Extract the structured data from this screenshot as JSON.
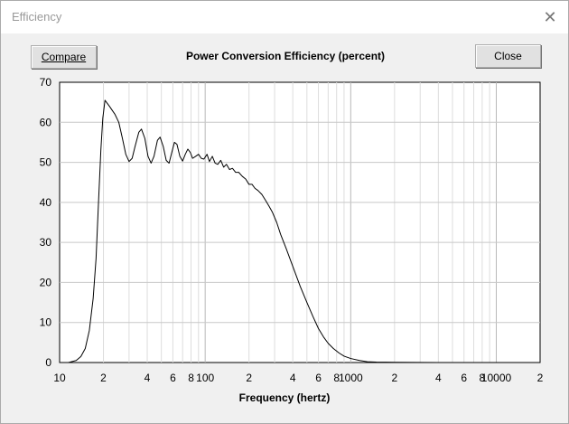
{
  "window": {
    "title": "Efficiency",
    "close_glyph": "✕"
  },
  "toolbar": {
    "compare_label": "Compare",
    "close_label": "Close"
  },
  "chart_data": {
    "type": "line",
    "title": "Power Conversion Efficiency (percent)",
    "xlabel": "Frequency (hertz)",
    "ylabel": "",
    "x_scale": "log",
    "xlim": [
      10,
      20000
    ],
    "ylim": [
      0,
      70
    ],
    "grid": true,
    "y_ticks": [
      0,
      10,
      20,
      30,
      40,
      50,
      60,
      70
    ],
    "x_ticks": [
      {
        "value": 10,
        "label": "10"
      },
      {
        "value": 20,
        "label": "2"
      },
      {
        "value": 40,
        "label": "4"
      },
      {
        "value": 60,
        "label": "6"
      },
      {
        "value": 80,
        "label": "8"
      },
      {
        "value": 100,
        "label": "100"
      },
      {
        "value": 200,
        "label": "2"
      },
      {
        "value": 400,
        "label": "4"
      },
      {
        "value": 600,
        "label": "6"
      },
      {
        "value": 800,
        "label": "8"
      },
      {
        "value": 1000,
        "label": "1000"
      },
      {
        "value": 2000,
        "label": "2"
      },
      {
        "value": 4000,
        "label": "4"
      },
      {
        "value": 6000,
        "label": "6"
      },
      {
        "value": 8000,
        "label": "8"
      },
      {
        "value": 10000,
        "label": "10000"
      },
      {
        "value": 20000,
        "label": "2"
      }
    ],
    "series": [
      {
        "color": "#000000",
        "points": [
          [
            11.5,
            0
          ],
          [
            13,
            0.5
          ],
          [
            14,
            1.5
          ],
          [
            15,
            3.5
          ],
          [
            16,
            8
          ],
          [
            17,
            16
          ],
          [
            17.8,
            26
          ],
          [
            18.5,
            40
          ],
          [
            19.2,
            53
          ],
          [
            19.8,
            61
          ],
          [
            20.5,
            65.5
          ],
          [
            22,
            64
          ],
          [
            24,
            62
          ],
          [
            25.5,
            60
          ],
          [
            27,
            56
          ],
          [
            28.5,
            52
          ],
          [
            30,
            50.2
          ],
          [
            31.5,
            51
          ],
          [
            33,
            54
          ],
          [
            35,
            57.5
          ],
          [
            36.5,
            58.3
          ],
          [
            38.5,
            56
          ],
          [
            40.5,
            51.5
          ],
          [
            42.5,
            49.8
          ],
          [
            44.5,
            51.5
          ],
          [
            47,
            55.5
          ],
          [
            49,
            56.3
          ],
          [
            51.5,
            54
          ],
          [
            54,
            50.5
          ],
          [
            56.5,
            49.8
          ],
          [
            59,
            52.5
          ],
          [
            61.5,
            55
          ],
          [
            64,
            54.5
          ],
          [
            67,
            51.5
          ],
          [
            70,
            50.3
          ],
          [
            73,
            52
          ],
          [
            76,
            53.3
          ],
          [
            79,
            52.5
          ],
          [
            82,
            51
          ],
          [
            86,
            51.5
          ],
          [
            90,
            52
          ],
          [
            94,
            51
          ],
          [
            98,
            50.8
          ],
          [
            103,
            52
          ],
          [
            107,
            50.2
          ],
          [
            112,
            51.5
          ],
          [
            117,
            49.8
          ],
          [
            122,
            49.5
          ],
          [
            128,
            50.5
          ],
          [
            134,
            48.8
          ],
          [
            140,
            49.5
          ],
          [
            147,
            48.2
          ],
          [
            154,
            48.5
          ],
          [
            162,
            47.5
          ],
          [
            170,
            47.5
          ],
          [
            180,
            46.5
          ],
          [
            190,
            45.8
          ],
          [
            200,
            44.5
          ],
          [
            210,
            44.5
          ],
          [
            220,
            43.5
          ],
          [
            230,
            43
          ],
          [
            245,
            42
          ],
          [
            260,
            40.5
          ],
          [
            275,
            39
          ],
          [
            290,
            37.5
          ],
          [
            310,
            35
          ],
          [
            330,
            32
          ],
          [
            360,
            28.5
          ],
          [
            400,
            24
          ],
          [
            450,
            19
          ],
          [
            500,
            15
          ],
          [
            550,
            11.5
          ],
          [
            600,
            8.5
          ],
          [
            650,
            6.4
          ],
          [
            700,
            4.8
          ],
          [
            760,
            3.5
          ],
          [
            830,
            2.4
          ],
          [
            900,
            1.6
          ],
          [
            1000,
            1
          ],
          [
            1150,
            0.5
          ],
          [
            1300,
            0.2
          ],
          [
            1500,
            0.1
          ],
          [
            2000,
            0.05
          ],
          [
            4000,
            0
          ],
          [
            10000,
            0
          ],
          [
            20000,
            0
          ]
        ]
      }
    ]
  }
}
